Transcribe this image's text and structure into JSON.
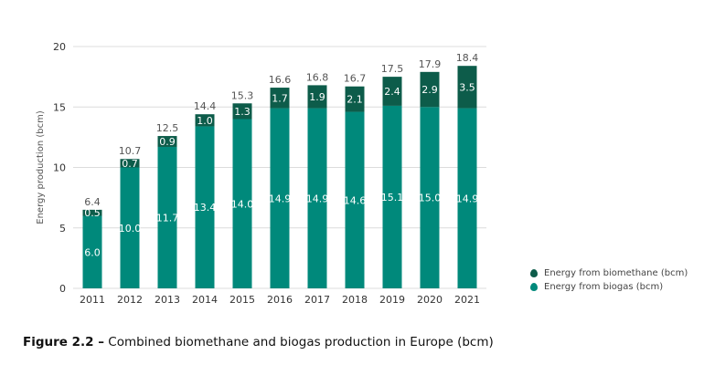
{
  "chart_data": {
    "type": "bar",
    "stacked": true,
    "categories": [
      "2011",
      "2012",
      "2013",
      "2014",
      "2015",
      "2016",
      "2017",
      "2018",
      "2019",
      "2020",
      "2021"
    ],
    "series": [
      {
        "name": "Energy from biogas (bcm)",
        "color": "#00897b",
        "values": [
          6.0,
          10.0,
          11.7,
          13.4,
          14.0,
          14.9,
          14.9,
          14.6,
          15.1,
          15.0,
          14.9
        ]
      },
      {
        "name": "Energy from biomethane (bcm)",
        "color": "#0d5c4a",
        "values": [
          0.5,
          0.7,
          0.9,
          1.0,
          1.3,
          1.7,
          1.9,
          2.1,
          2.4,
          2.9,
          3.5
        ]
      }
    ],
    "totals": [
      "6.4",
      "10.7",
      "12.5",
      "14.4",
      "15.3",
      "16.6",
      "16.8",
      "16.7",
      "17.5",
      "17.9",
      "18.4"
    ],
    "ylabel": "Energy production (bcm)",
    "xlabel": "",
    "ylim": [
      0,
      20
    ],
    "yticks": [
      0,
      5,
      10,
      15,
      20
    ],
    "grid": true,
    "legend_position": "right"
  },
  "caption": {
    "label": "Figure 2.2 –",
    "text": " Combined biomethane and biogas production in Europe (bcm)"
  }
}
